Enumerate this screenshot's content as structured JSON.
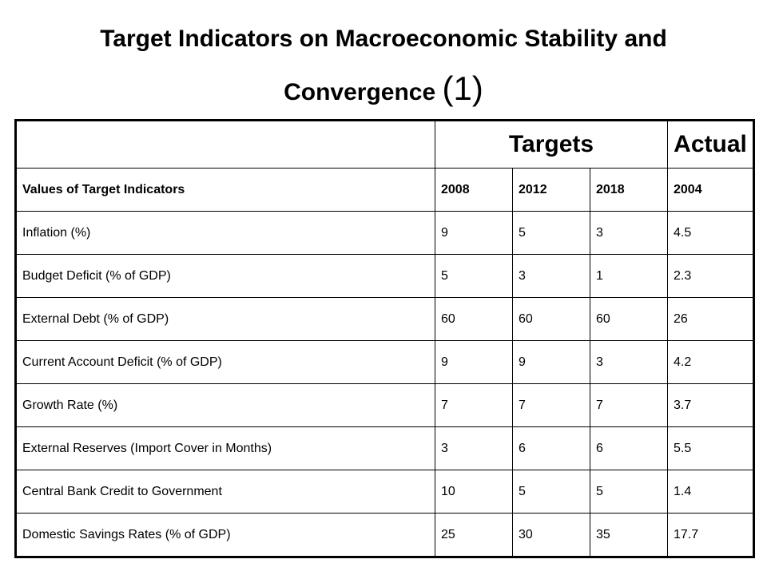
{
  "title": {
    "line1": "Target Indicators on Macroeconomic Stability and",
    "line2": "Convergence",
    "suffix": "(1)"
  },
  "table": {
    "group_headers": {
      "corner": "",
      "targets": "Targets",
      "actual": "Actual"
    },
    "column_headers": [
      "Values of Target Indicators",
      "2008",
      "2012",
      "2018",
      "2004"
    ],
    "rows": [
      [
        "Inflation (%)",
        "9",
        "5",
        "3",
        "4.5"
      ],
      [
        "Budget Deficit (% of GDP)",
        "5",
        "3",
        "1",
        "2.3"
      ],
      [
        "External Debt (% of GDP)",
        "60",
        "60",
        "60",
        "26"
      ],
      [
        "Current Account Deficit (% of GDP)",
        "9",
        "9",
        "3",
        "4.2"
      ],
      [
        "Growth Rate (%)",
        "7",
        "7",
        "7",
        "3.7"
      ],
      [
        "External Reserves (Import Cover in Months)",
        "3",
        "6",
        "6",
        "5.5"
      ],
      [
        "Central Bank Credit to Government",
        "10",
        "5",
        "5",
        "1.4"
      ],
      [
        "Domestic Savings Rates (% of GDP)",
        "25",
        "30",
        "35",
        "17.7"
      ]
    ]
  }
}
